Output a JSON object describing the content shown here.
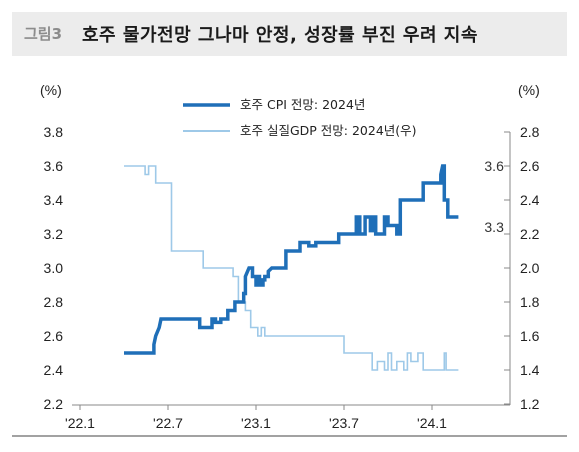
{
  "header": {
    "figure_no": "그림3",
    "title": "호주 물가전망 그나마 안정, 성장률 부진 우려 지속"
  },
  "chart_data": {
    "type": "line",
    "left_axis": {
      "unit": "(%)",
      "ylim": [
        2.2,
        3.8
      ],
      "ticks": [
        "2.2",
        "2.4",
        "2.6",
        "2.8",
        "3.0",
        "3.2",
        "3.4",
        "3.6",
        "3.8"
      ]
    },
    "right_axis": {
      "unit": "(%)",
      "ylim": [
        1.2,
        2.8
      ],
      "ticks": [
        "1.2",
        "1.4",
        "1.6",
        "1.8",
        "2.0",
        "2.2",
        "2.4",
        "2.6",
        "2.8"
      ]
    },
    "x_ticks": [
      "'22.1",
      "'22.7",
      "'23.1",
      "'23.7",
      "'24.1"
    ],
    "x_tick_values": [
      2022.0,
      2022.5,
      2023.0,
      2023.5,
      2024.0
    ],
    "xlim": [
      2022.0,
      2024.5
    ],
    "legend_position": "top-center",
    "series": [
      {
        "name": "호주 CPI 전망: 2024년",
        "axis": "left",
        "color": "#1f6fb8",
        "end_label": "3.3",
        "peak_label": "3.6",
        "points": [
          [
            2022.25,
            2.5
          ],
          [
            2022.42,
            2.5
          ],
          [
            2022.42,
            2.55
          ],
          [
            2022.43,
            2.6
          ],
          [
            2022.45,
            2.65
          ],
          [
            2022.46,
            2.7
          ],
          [
            2022.68,
            2.7
          ],
          [
            2022.68,
            2.65
          ],
          [
            2022.75,
            2.65
          ],
          [
            2022.75,
            2.7
          ],
          [
            2022.77,
            2.7
          ],
          [
            2022.77,
            2.68
          ],
          [
            2022.8,
            2.68
          ],
          [
            2022.8,
            2.7
          ],
          [
            2022.84,
            2.7
          ],
          [
            2022.84,
            2.75
          ],
          [
            2022.88,
            2.75
          ],
          [
            2022.88,
            2.8
          ],
          [
            2022.93,
            2.8
          ],
          [
            2022.93,
            2.85
          ],
          [
            2022.94,
            2.85
          ],
          [
            2022.94,
            2.95
          ],
          [
            2022.96,
            3.0
          ],
          [
            2022.98,
            3.0
          ],
          [
            2022.98,
            2.95
          ],
          [
            2023.0,
            2.95
          ],
          [
            2023.0,
            2.9
          ],
          [
            2023.01,
            2.9
          ],
          [
            2023.01,
            2.95
          ],
          [
            2023.02,
            2.95
          ],
          [
            2023.02,
            2.92
          ],
          [
            2023.03,
            2.92
          ],
          [
            2023.03,
            2.9
          ],
          [
            2023.04,
            2.9
          ],
          [
            2023.04,
            2.93
          ],
          [
            2023.05,
            2.93
          ],
          [
            2023.05,
            2.95
          ],
          [
            2023.07,
            2.95
          ],
          [
            2023.07,
            2.98
          ],
          [
            2023.09,
            3.0
          ],
          [
            2023.17,
            3.0
          ],
          [
            2023.17,
            3.1
          ],
          [
            2023.25,
            3.1
          ],
          [
            2023.25,
            3.15
          ],
          [
            2023.3,
            3.15
          ],
          [
            2023.3,
            3.13
          ],
          [
            2023.34,
            3.13
          ],
          [
            2023.34,
            3.15
          ],
          [
            2023.47,
            3.15
          ],
          [
            2023.47,
            3.2
          ],
          [
            2023.57,
            3.2
          ],
          [
            2023.57,
            3.3
          ],
          [
            2023.59,
            3.3
          ],
          [
            2023.59,
            3.2
          ],
          [
            2023.62,
            3.2
          ],
          [
            2023.62,
            3.3
          ],
          [
            2023.65,
            3.3
          ],
          [
            2023.65,
            3.22
          ],
          [
            2023.67,
            3.22
          ],
          [
            2023.67,
            3.3
          ],
          [
            2023.68,
            3.3
          ],
          [
            2023.68,
            3.2
          ],
          [
            2023.73,
            3.2
          ],
          [
            2023.73,
            3.3
          ],
          [
            2023.75,
            3.3
          ],
          [
            2023.75,
            3.25
          ],
          [
            2023.8,
            3.25
          ],
          [
            2023.8,
            3.2
          ],
          [
            2023.82,
            3.2
          ],
          [
            2023.82,
            3.4
          ],
          [
            2023.95,
            3.4
          ],
          [
            2023.95,
            3.5
          ],
          [
            2024.05,
            3.5
          ],
          [
            2024.05,
            3.55
          ],
          [
            2024.06,
            3.6
          ],
          [
            2024.07,
            3.6
          ],
          [
            2024.07,
            3.4
          ],
          [
            2024.09,
            3.4
          ],
          [
            2024.09,
            3.3
          ],
          [
            2024.15,
            3.3
          ]
        ]
      },
      {
        "name": "호주 실질GDP 전망: 2024년(우)",
        "axis": "right",
        "color": "#9ec9e8",
        "end_label": "1.4",
        "points": [
          [
            2022.25,
            2.6
          ],
          [
            2022.37,
            2.6
          ],
          [
            2022.37,
            2.55
          ],
          [
            2022.39,
            2.55
          ],
          [
            2022.39,
            2.6
          ],
          [
            2022.43,
            2.6
          ],
          [
            2022.43,
            2.5
          ],
          [
            2022.52,
            2.5
          ],
          [
            2022.52,
            2.1
          ],
          [
            2022.7,
            2.1
          ],
          [
            2022.7,
            2.0
          ],
          [
            2022.87,
            2.0
          ],
          [
            2022.87,
            1.95
          ],
          [
            2022.9,
            1.95
          ],
          [
            2022.9,
            1.8
          ],
          [
            2022.94,
            1.8
          ],
          [
            2022.94,
            1.75
          ],
          [
            2022.97,
            1.75
          ],
          [
            2022.97,
            1.65
          ],
          [
            2023.01,
            1.65
          ],
          [
            2023.01,
            1.6
          ],
          [
            2023.03,
            1.6
          ],
          [
            2023.03,
            1.65
          ],
          [
            2023.05,
            1.65
          ],
          [
            2023.05,
            1.6
          ],
          [
            2023.5,
            1.6
          ],
          [
            2023.5,
            1.5
          ],
          [
            2023.66,
            1.5
          ],
          [
            2023.66,
            1.4
          ],
          [
            2023.69,
            1.4
          ],
          [
            2023.69,
            1.45
          ],
          [
            2023.73,
            1.45
          ],
          [
            2023.73,
            1.4
          ],
          [
            2023.75,
            1.4
          ],
          [
            2023.75,
            1.5
          ],
          [
            2023.77,
            1.5
          ],
          [
            2023.77,
            1.4
          ],
          [
            2023.8,
            1.4
          ],
          [
            2023.8,
            1.45
          ],
          [
            2023.84,
            1.45
          ],
          [
            2023.84,
            1.4
          ],
          [
            2023.86,
            1.4
          ],
          [
            2023.86,
            1.5
          ],
          [
            2023.88,
            1.5
          ],
          [
            2023.88,
            1.45
          ],
          [
            2023.92,
            1.45
          ],
          [
            2023.92,
            1.5
          ],
          [
            2023.95,
            1.5
          ],
          [
            2023.95,
            1.4
          ],
          [
            2024.07,
            1.4
          ],
          [
            2024.07,
            1.5
          ],
          [
            2024.08,
            1.5
          ],
          [
            2024.08,
            1.4
          ],
          [
            2024.15,
            1.4
          ]
        ]
      }
    ]
  }
}
